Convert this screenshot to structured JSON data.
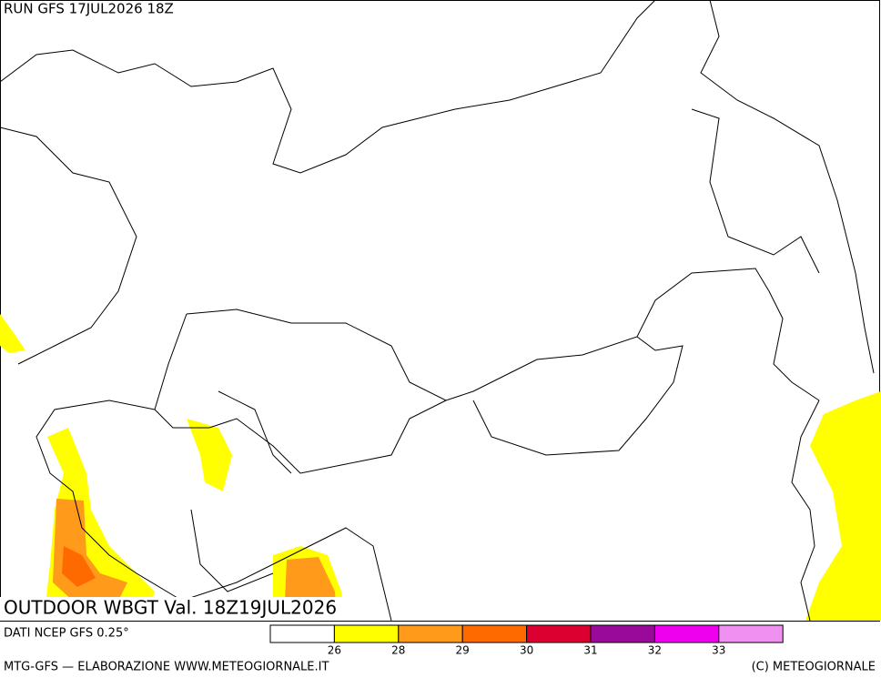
{
  "header": {
    "run": "RUN GFS 17JUL2026 18Z"
  },
  "map": {
    "title": "OUTDOOR WBGT Val. 18Z19JUL2026"
  },
  "legend": {
    "source": "DATI NCEP GFS 0.25°",
    "colors": [
      "#ffffff",
      "#ffff00",
      "#ff9a1a",
      "#ff6a00",
      "#dc0030",
      "#9a0a9a",
      "#ee00ee",
      "#f090f0"
    ],
    "ticks": [
      26,
      28,
      29,
      30,
      31,
      32,
      33
    ]
  },
  "footer": {
    "left": "MTG-GFS — ELABORAZIONE WWW.METEOGIORNALE.IT",
    "right": "(C) METEOGIORNALE"
  }
}
